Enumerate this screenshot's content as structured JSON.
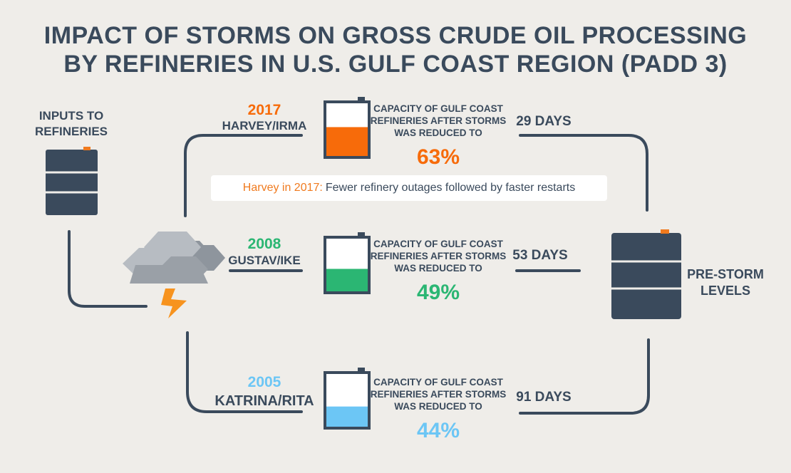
{
  "title": {
    "line1": "IMPACT OF STORMS ON GROSS CRUDE OIL PROCESSING",
    "line2": "BY REFINERIES IN U.S. GULF COAST REGION (PADD 3)"
  },
  "inputs_label": {
    "line1": "INPUTS TO",
    "line2": "REFINERIES"
  },
  "prestorm_label": {
    "line1": "PRE-STORM",
    "line2": "LEVELS"
  },
  "note": {
    "year_text": "Harvey in 2017:",
    "text": "Fewer refinery outages followed by faster restarts"
  },
  "events": [
    {
      "year": "2017",
      "storms": "HARVEY/IRMA",
      "caption_line1": "CAPACITY OF GULF COAST",
      "caption_line2": "REFINERIES AFTER STORMS",
      "caption_line3": "WAS REDUCED TO",
      "percent": "63%",
      "percent_value": 63,
      "days": "29 DAYS",
      "color": "#f76b0a"
    },
    {
      "year": "2008",
      "storms": "GUSTAV/IKE",
      "caption_line1": "CAPACITY OF GULF COAST",
      "caption_line2": "REFINERIES AFTER STORMS",
      "caption_line3": "WAS REDUCED TO",
      "percent": "49%",
      "percent_value": 49,
      "days": "53 DAYS",
      "color": "#2bb673"
    },
    {
      "year": "2005",
      "storms": "KATRINA/RITA",
      "caption_line1": "CAPACITY OF GULF COAST",
      "caption_line2": "REFINERIES AFTER STORMS",
      "caption_line3": "WAS REDUCED TO",
      "percent": "44%",
      "percent_value": 44,
      "days": "91 DAYS",
      "color": "#6cc6f5"
    }
  ],
  "colors": {
    "dark": "#3a4a5c",
    "title": "#3a4a5c",
    "background": "#efede9",
    "accent": "#f07a1e",
    "cloud_light": "#b7bcc2",
    "cloud_dark": "#8e959d",
    "lightning": "#f7931e"
  }
}
